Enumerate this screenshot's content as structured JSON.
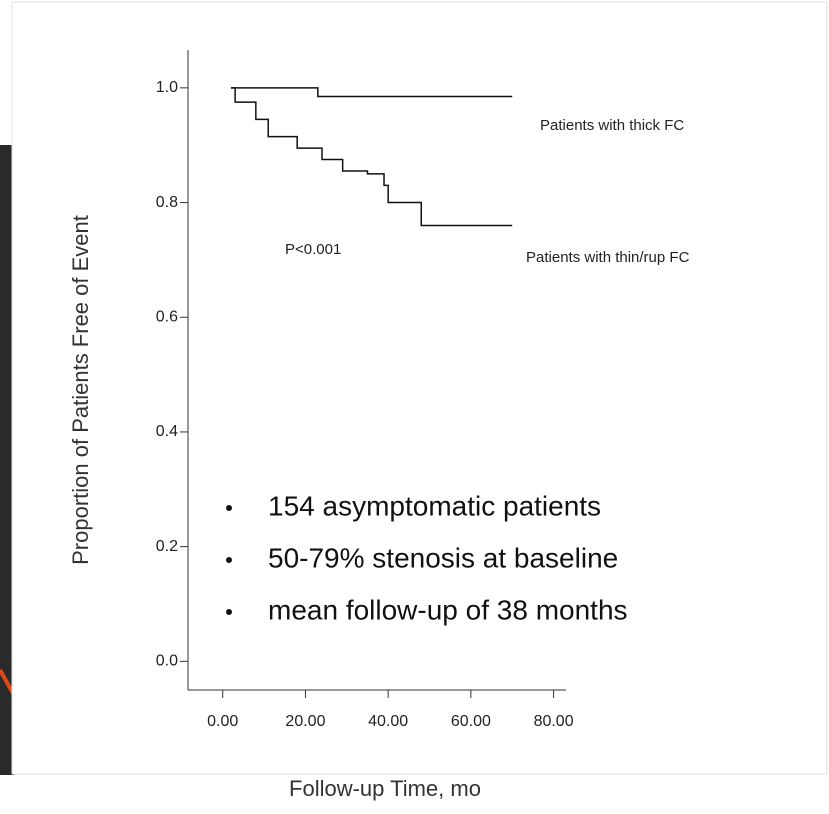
{
  "chart_data": {
    "type": "step",
    "x_label": "Follow-up Time, mo",
    "y_label": "Proportion of Patients Free of Event",
    "series": [
      {
        "name": "Patients with thick FC",
        "color": "#111111",
        "x": [
          2,
          23,
          70
        ],
        "values": [
          1.0,
          0.985,
          0.985
        ]
      },
      {
        "name": "Patients with thin/rup FC",
        "color": "#111111",
        "x": [
          2,
          3,
          8,
          11,
          18,
          24,
          29,
          35,
          39,
          40,
          48,
          70
        ],
        "values": [
          1.0,
          0.975,
          0.945,
          0.915,
          0.895,
          0.875,
          0.855,
          0.85,
          0.83,
          0.8,
          0.76,
          0.76
        ]
      }
    ],
    "annotations": [
      "P<0.001"
    ],
    "bullets": [
      "154 asymptomatic patients",
      "50-79% stenosis at baseline",
      "mean follow-up of 38 months"
    ],
    "xlim": [
      -8.4,
      83
    ],
    "ylim": [
      -0.05,
      1.066
    ],
    "xticks": [
      {
        "value": 0,
        "label": "0.00"
      },
      {
        "value": 20,
        "label": "20.00"
      },
      {
        "value": 40,
        "label": "40.00"
      },
      {
        "value": 60,
        "label": "60.00"
      },
      {
        "value": 80,
        "label": "80.00"
      }
    ],
    "yticks": [
      {
        "value": 0,
        "label": "0.0"
      },
      {
        "value": 0.2,
        "label": "0.2"
      },
      {
        "value": 0.4,
        "label": "0.4"
      },
      {
        "value": 0.6,
        "label": "0.6"
      },
      {
        "value": 0.8,
        "label": "0.8"
      },
      {
        "value": 1.0,
        "label": "1.0"
      }
    ]
  }
}
